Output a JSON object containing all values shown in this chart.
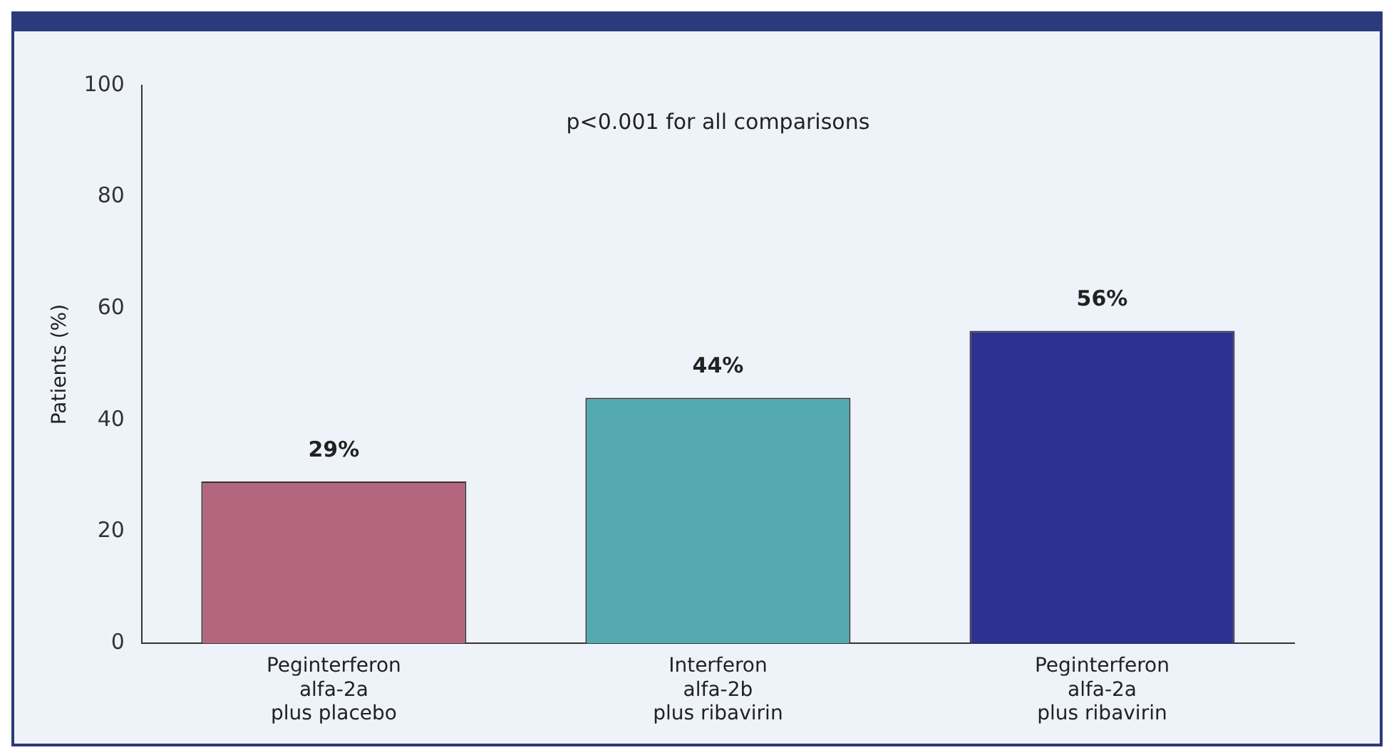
{
  "chart_data": {
    "type": "bar",
    "categories": [
      "Peginterferon\nalfa-2a\nplus placebo",
      "Interferon\nalfa-2b\nplus ribavirin",
      "Peginterferon\nalfa-2a\nplus ribavirin"
    ],
    "values": [
      29,
      44,
      56
    ],
    "colors": [
      "#b5667f",
      "#55aab2",
      "#2e3190"
    ],
    "value_labels": [
      "29%",
      "44%",
      "56%"
    ],
    "ylabel": "Patients (%)",
    "ylim": [
      0,
      100
    ],
    "yticks": [
      0,
      20,
      40,
      60,
      80,
      100
    ],
    "annotations": [
      "p<0.001 for all comparisons"
    ],
    "grid": false,
    "legend": false
  }
}
